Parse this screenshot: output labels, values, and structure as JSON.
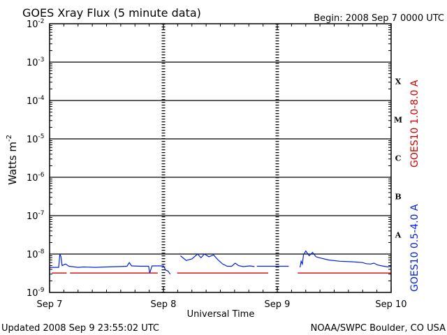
{
  "chart_data": {
    "type": "line",
    "title": "GOES Xray Flux (5 minute data)",
    "begin_label": "Begin:  2008 Sep 7 0000 UTC",
    "xlabel": "Universal Time",
    "ylabel": "Watts m",
    "ylabel_sup": "-2",
    "x_ticks": [
      "Sep 7",
      "Sep 8",
      "Sep 9",
      "Sep 10"
    ],
    "xlim_days": [
      0,
      3
    ],
    "ylim": [
      1e-09,
      0.01
    ],
    "y_scale": "log",
    "y_ticks": [
      {
        "base": "10",
        "exp": "-2"
      },
      {
        "base": "10",
        "exp": "-3"
      },
      {
        "base": "10",
        "exp": "-4"
      },
      {
        "base": "10",
        "exp": "-5"
      },
      {
        "base": "10",
        "exp": "-6"
      },
      {
        "base": "10",
        "exp": "-7"
      },
      {
        "base": "10",
        "exp": "-8"
      },
      {
        "base": "10",
        "exp": "-9"
      }
    ],
    "flare_classes": [
      "X",
      "M",
      "C",
      "B",
      "A"
    ],
    "grid": true,
    "series": [
      {
        "name": "GOES10 1.0-8.0 A",
        "color": "#d40000",
        "segments": [
          [
            [
              0.02,
              3.2e-09
            ],
            [
              0.15,
              3.2e-09
            ]
          ],
          [
            [
              0.18,
              3.2e-09
            ],
            [
              0.95,
              3.2e-09
            ]
          ],
          [
            [
              1.12,
              3.2e-09
            ],
            [
              1.92,
              3.2e-09
            ]
          ],
          [
            [
              2.18,
              3.2e-09
            ],
            [
              3.0,
              3.2e-09
            ]
          ]
        ]
      },
      {
        "name": "GOES10 0.5-4.0 A",
        "color": "#0020e0",
        "segments": [
          [
            [
              0.0,
              1.5e-09
            ],
            [
              0.0,
              4.5e-09
            ],
            [
              0.08,
              4.5e-09
            ],
            [
              0.09,
              1e-08
            ],
            [
              0.1,
              8.5e-09
            ],
            [
              0.11,
              5e-09
            ],
            [
              0.14,
              5.5e-09
            ],
            [
              0.17,
              4.8e-09
            ],
            [
              0.25,
              4.5e-09
            ],
            [
              0.3,
              4.6e-09
            ],
            [
              0.4,
              4.5e-09
            ],
            [
              0.5,
              4.6e-09
            ],
            [
              0.6,
              4.7e-09
            ],
            [
              0.68,
              4.8e-09
            ],
            [
              0.7,
              6e-09
            ],
            [
              0.72,
              4.9e-09
            ],
            [
              0.8,
              4.8e-09
            ],
            [
              0.87,
              4.8e-09
            ],
            [
              0.88,
              3.2e-09
            ],
            [
              0.9,
              4.9e-09
            ],
            [
              1.0,
              4.9e-09
            ],
            [
              1.02,
              3.8e-09
            ],
            [
              1.04,
              3.6e-09
            ],
            [
              1.06,
              3e-09
            ]
          ],
          [
            [
              1.15,
              9e-09
            ],
            [
              1.2,
              6.8e-09
            ],
            [
              1.25,
              7.5e-09
            ],
            [
              1.3,
              1e-08
            ],
            [
              1.33,
              8e-09
            ],
            [
              1.36,
              1e-08
            ],
            [
              1.4,
              8.5e-09
            ],
            [
              1.44,
              9.5e-09
            ],
            [
              1.48,
              7e-09
            ],
            [
              1.52,
              5.5e-09
            ],
            [
              1.56,
              4.8e-09
            ],
            [
              1.6,
              4.8e-09
            ],
            [
              1.63,
              5.8e-09
            ],
            [
              1.66,
              5e-09
            ],
            [
              1.7,
              4.7e-09
            ],
            [
              1.76,
              4.9e-09
            ],
            [
              1.8,
              4.7e-09
            ]
          ],
          [
            [
              1.82,
              4.8e-09
            ],
            [
              2.1,
              4.8e-09
            ]
          ],
          [
            [
              2.2,
              4.5e-09
            ],
            [
              2.21,
              6.5e-09
            ],
            [
              2.22,
              5.5e-09
            ],
            [
              2.23,
              9.5e-09
            ],
            [
              2.25,
              1.2e-08
            ],
            [
              2.28,
              9e-09
            ],
            [
              2.31,
              1.1e-08
            ],
            [
              2.34,
              8.5e-09
            ],
            [
              2.37,
              8e-09
            ],
            [
              2.45,
              7e-09
            ],
            [
              2.55,
              6.5e-09
            ],
            [
              2.65,
              6.3e-09
            ],
            [
              2.75,
              6e-09
            ],
            [
              2.78,
              5.6e-09
            ],
            [
              2.82,
              5.5e-09
            ],
            [
              2.85,
              5.8e-09
            ],
            [
              2.88,
              5.2e-09
            ],
            [
              2.92,
              4.9e-09
            ],
            [
              2.97,
              4.6e-09
            ],
            [
              3.0,
              4.8e-09
            ]
          ]
        ]
      }
    ]
  },
  "footer": {
    "updated": "Updated 2008 Sep  9 23:55:02 UTC",
    "credit": "NOAA/SWPC Boulder, CO USA"
  }
}
